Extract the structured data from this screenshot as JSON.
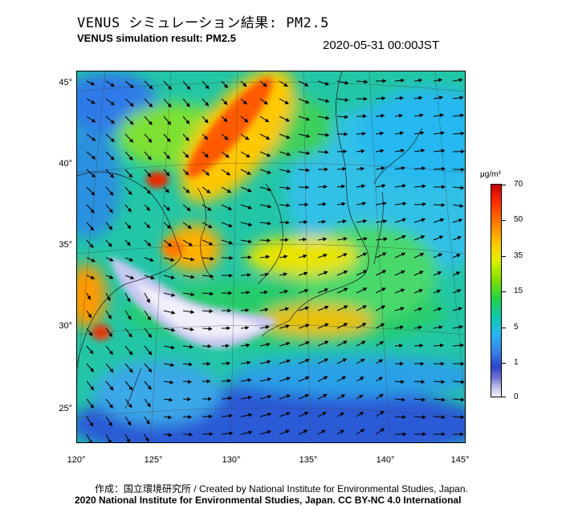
{
  "header": {
    "title_jp": "VENUS シミュレーション結果: PM2.5",
    "title_en": "VENUS simulation result: PM2.5",
    "datetime": "2020-05-31 00:00JST"
  },
  "map": {
    "lat_ticks": [
      "45°",
      "40°",
      "35°",
      "30°",
      "25°"
    ],
    "lon_ticks": [
      "120°",
      "125°",
      "130°",
      "135°",
      "140°",
      "145°"
    ],
    "lon_range": [
      120,
      145
    ],
    "lat_range": [
      23,
      46
    ],
    "overlay": "wind vectors"
  },
  "colorbar": {
    "unit": "μg/m³",
    "labels": [
      "70",
      "50",
      "35",
      "15",
      "5",
      "1",
      "0"
    ],
    "colors": [
      "#c80000",
      "#ff7a00",
      "#ffc800",
      "#7ee000",
      "#22d24a",
      "#10c8b4",
      "#28b4f0",
      "#2a46c8",
      "#b4b4e6",
      "#f4f4fa"
    ]
  },
  "footer": {
    "credit_line1": "作成：国立環境研究所 / Created by National Institute for Environmental Studies, Japan.",
    "credit_line2": "2020 National Institute for Environmental Studies, Japan. CC BY-NC 4.0 International"
  }
}
